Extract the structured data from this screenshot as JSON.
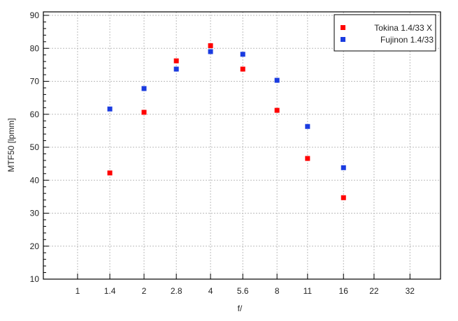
{
  "chart_data": {
    "type": "scatter",
    "title": "",
    "xlabel": "f/",
    "ylabel": "MTF50 [lpmm]",
    "x_scale": "log2",
    "xlim": [
      0.7,
      44
    ],
    "ylim": [
      10,
      90
    ],
    "x_ticks": [
      1,
      1.4,
      2,
      2.8,
      4,
      5.6,
      8,
      11,
      16,
      22,
      32
    ],
    "x_tick_labels": [
      "1",
      "1.4",
      "2",
      "2.8",
      "4",
      "5.6",
      "8",
      "11",
      "16",
      "22",
      "32"
    ],
    "y_ticks": [
      10,
      20,
      30,
      40,
      50,
      60,
      70,
      80,
      90
    ],
    "y_tick_labels": [
      "10",
      "20",
      "30",
      "40",
      "50",
      "60",
      "70",
      "80",
      "90"
    ],
    "grid": true,
    "legend_position": "top-right",
    "x": [
      1.4,
      2,
      2.8,
      4,
      5.6,
      8,
      11,
      16
    ],
    "series": [
      {
        "name": "Tokina 1.4/33 X",
        "color": "#ff0000",
        "values": [
          42.2,
          60.6,
          76.2,
          80.8,
          73.7,
          61.2,
          46.6,
          34.7
        ]
      },
      {
        "name": "Fujinon 1.4/33",
        "color": "#1a3be0",
        "values": [
          61.6,
          67.8,
          73.7,
          79.0,
          78.2,
          70.3,
          56.3,
          43.8
        ]
      }
    ]
  }
}
